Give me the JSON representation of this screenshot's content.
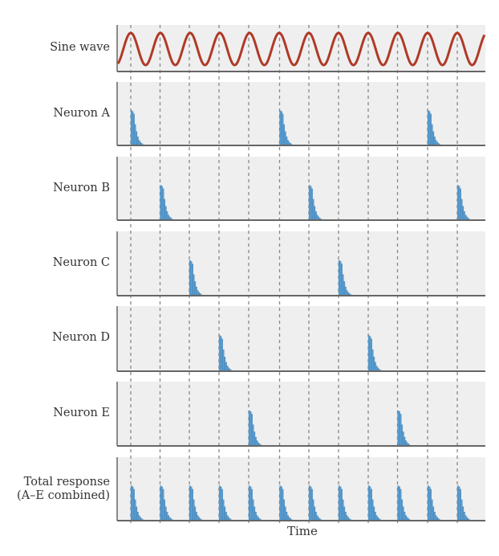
{
  "chart_data": {
    "type": "bar",
    "title": "",
    "xlabel": "Time",
    "ylabel": "",
    "grid": false,
    "legend": null,
    "description": "Volley principle: sine-wave stimulus with 12 cycles; five neurons (A–E) each fire a decaying spike burst at the peak of every 5th cycle, staggered so that the combined total response fires at every cycle peak.",
    "sine_cycles_visible": 12,
    "peak_times": [
      0,
      1,
      2,
      3,
      4,
      5,
      6,
      7,
      8,
      9,
      10,
      11
    ],
    "spike_profile": [
      1.0,
      0.97,
      0.9,
      0.6,
      0.4,
      0.25,
      0.15,
      0.1,
      0.06,
      0.03
    ],
    "spike_relative_height": 0.55,
    "series": [
      {
        "name": "Sine wave",
        "type": "line",
        "color": "#b03a28"
      },
      {
        "name": "Neuron A",
        "fires_at_peaks": [
          0,
          5,
          10
        ]
      },
      {
        "name": "Neuron B",
        "fires_at_peaks": [
          1,
          6,
          11
        ]
      },
      {
        "name": "Neuron C",
        "fires_at_peaks": [
          2,
          7
        ]
      },
      {
        "name": "Neuron D",
        "fires_at_peaks": [
          3,
          8
        ]
      },
      {
        "name": "Neuron E",
        "fires_at_peaks": [
          4,
          9
        ]
      },
      {
        "name": "Total response (A–E combined)",
        "fires_at_peaks": [
          0,
          1,
          2,
          3,
          4,
          5,
          6,
          7,
          8,
          9,
          10,
          11
        ]
      }
    ],
    "colors": {
      "sine": "#b03a28",
      "spike": "#5b9fd2",
      "spike_edge": "#2f6fa3",
      "panel_bg": "#efefef",
      "axis": "#666666",
      "dashed": "#888888"
    }
  },
  "labels": {
    "sine": "Sine wave",
    "neuron_a": "Neuron A",
    "neuron_b": "Neuron B",
    "neuron_c": "Neuron C",
    "neuron_d": "Neuron D",
    "neuron_e": "Neuron E",
    "total_line1": "Total response",
    "total_line2": "(A–E combined)",
    "xaxis": "Time"
  }
}
